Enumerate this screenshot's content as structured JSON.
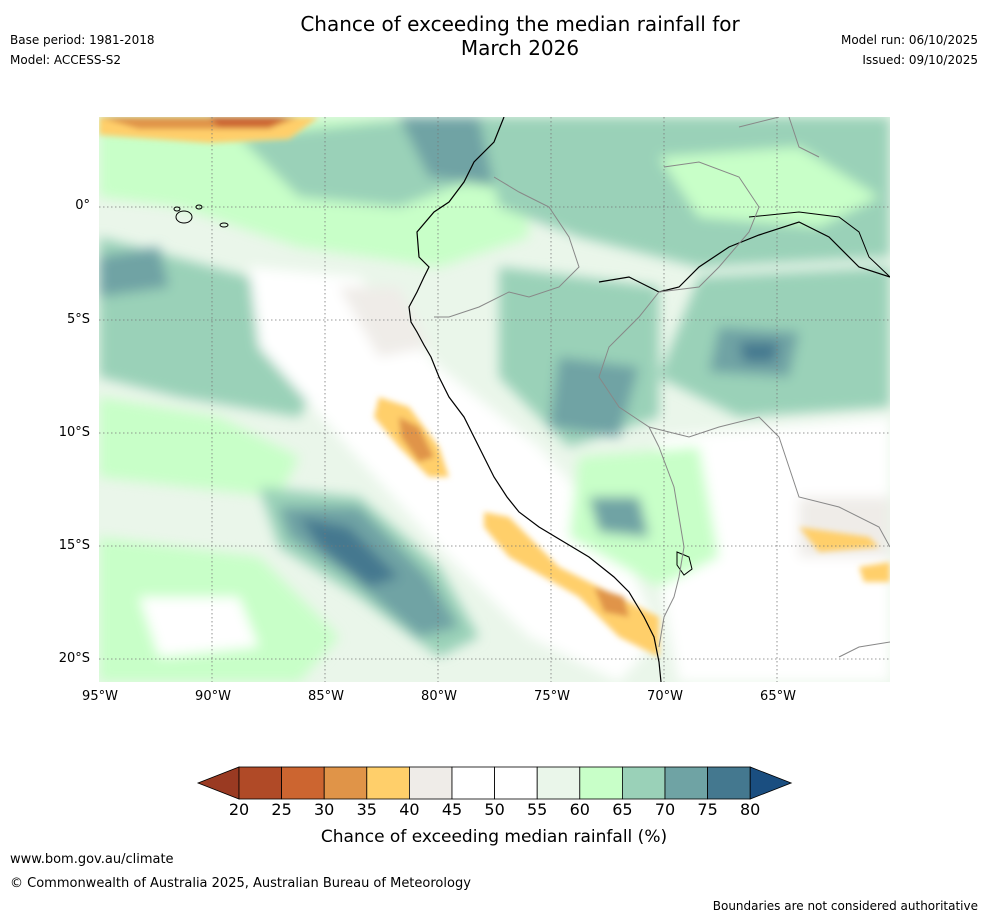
{
  "title_line1": "Chance of exceeding the median rainfall for",
  "title_line2": "March 2026",
  "meta_left": {
    "base_period": "Base period: 1981-2018",
    "model": "Model: ACCESS-S2"
  },
  "meta_right": {
    "model_run": "Model run: 06/10/2025",
    "issued": "Issued: 09/10/2025"
  },
  "map": {
    "lat_ticks": [
      "0°",
      "5°S",
      "10°S",
      "15°S",
      "20°S"
    ],
    "lon_ticks": [
      "95°W",
      "90°W",
      "85°W",
      "80°W",
      "75°W",
      "70°W",
      "65°W"
    ]
  },
  "colorbar": {
    "title": "Chance of exceeding median rainfall (%)",
    "labels": [
      "20",
      "25",
      "30",
      "35",
      "40",
      "45",
      "50",
      "55",
      "60",
      "65",
      "70",
      "75",
      "80"
    ],
    "colors": [
      "#9a3a22",
      "#b04a27",
      "#cc6530",
      "#e09448",
      "#ffcf6a",
      "#efece8",
      "#ffffff",
      "#ffffff",
      "#eaf6ea",
      "#c8ffc8",
      "#9ad1b8",
      "#6fa3a4",
      "#44788f",
      "#1a4e80"
    ]
  },
  "footer": {
    "url": "www.bom.gov.au/climate",
    "copyright": "© Commonwealth of Australia 2025, Australian Bureau of Meteorology",
    "note": "Boundaries are not considered authoritative"
  }
}
